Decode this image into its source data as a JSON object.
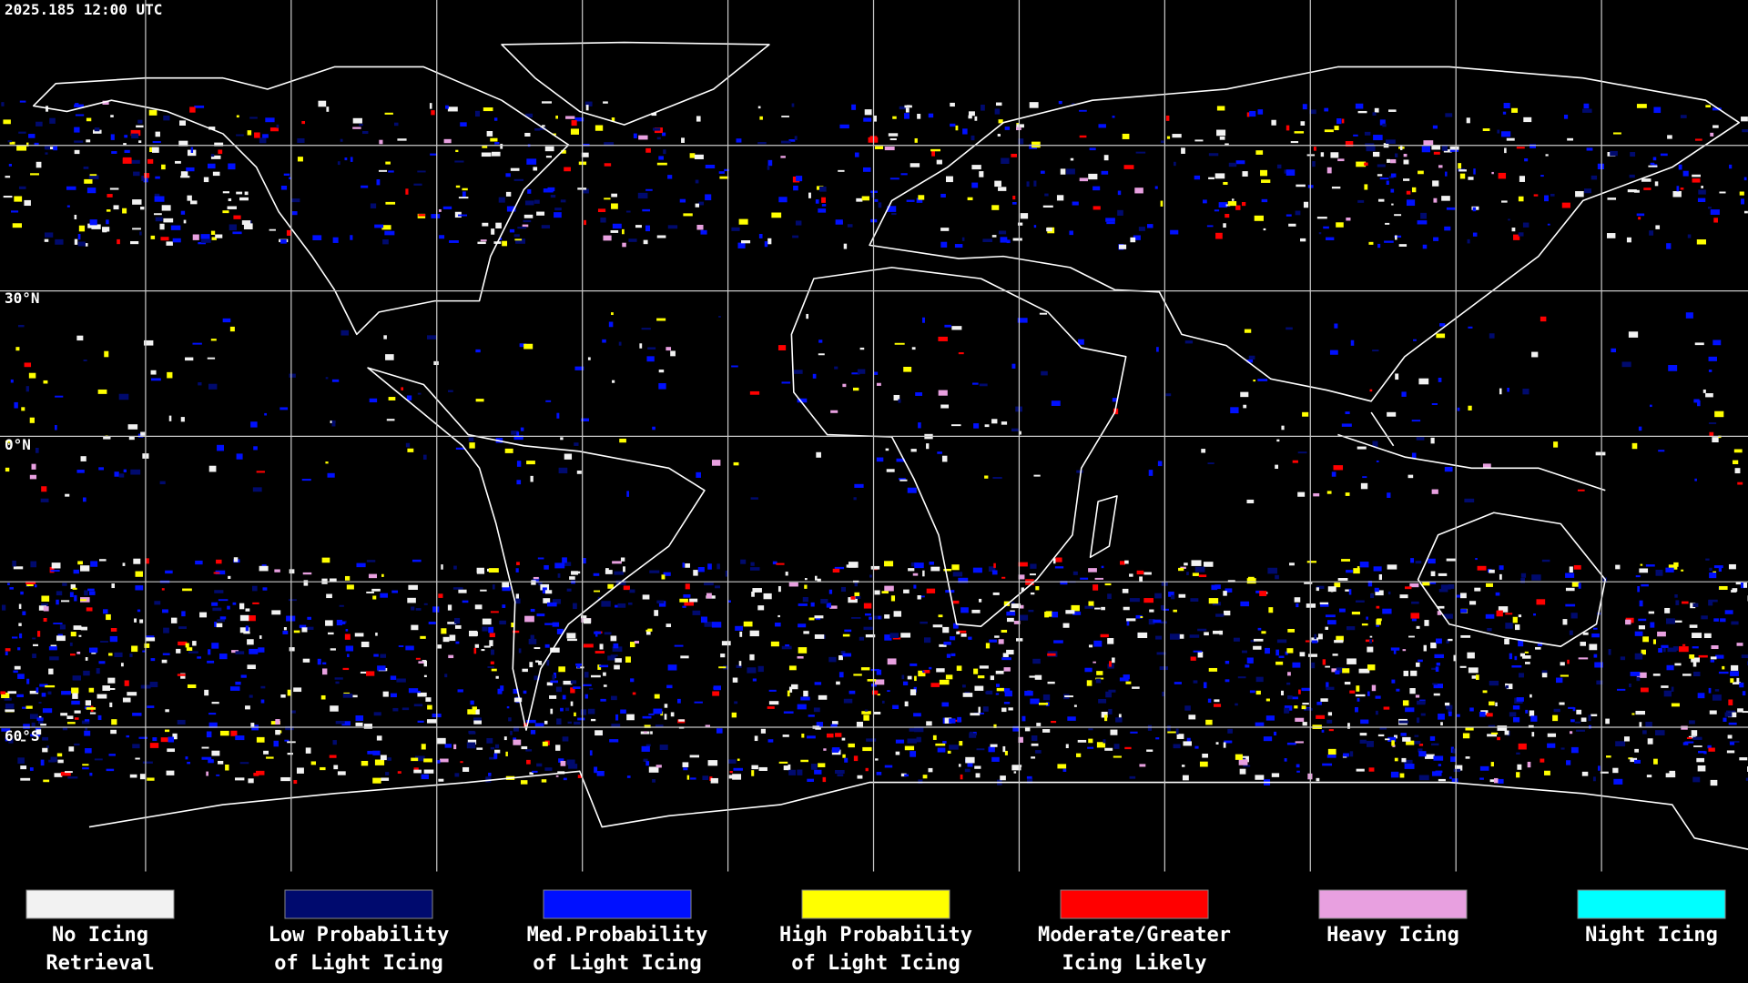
{
  "timestamp": "2025.185 12:00 UTC",
  "latitude_labels": [
    "30°N",
    "0°N",
    "60°S"
  ],
  "legend": [
    {
      "color": "#f2f2f2",
      "lines": [
        "No Icing",
        "Retrieval"
      ]
    },
    {
      "color": "#000a6e",
      "lines": [
        "Low Probability",
        "of Light Icing"
      ]
    },
    {
      "color": "#0010ff",
      "lines": [
        "Med.Probability",
        "of Light Icing"
      ]
    },
    {
      "color": "#ffff00",
      "lines": [
        "High Probability",
        "of Light Icing"
      ]
    },
    {
      "color": "#ff0000",
      "lines": [
        "Moderate/Greater",
        "Icing Likely"
      ]
    },
    {
      "color": "#e8a0e0",
      "lines": [
        "Heavy Icing"
      ]
    },
    {
      "color": "#00ffff",
      "lines": [
        "Night Icing"
      ]
    }
  ]
}
